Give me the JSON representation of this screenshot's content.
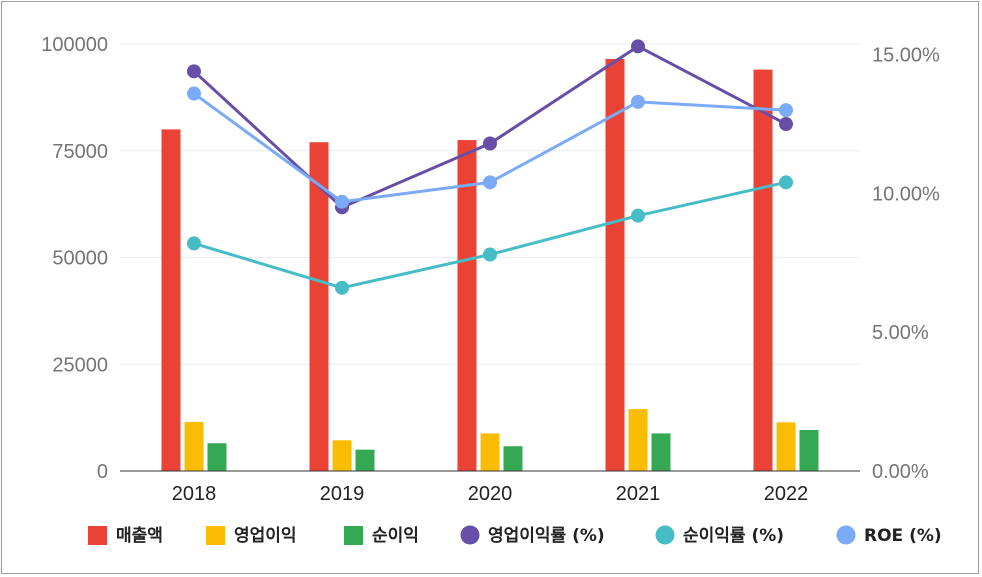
{
  "chart_data": {
    "type": "bar",
    "categories": [
      "2018",
      "2019",
      "2020",
      "2021",
      "2022"
    ],
    "bar_series": [
      {
        "name": "매출액",
        "color": "#ea4335",
        "values": [
          80000,
          77000,
          77500,
          96500,
          94000
        ]
      },
      {
        "name": "영업이익",
        "color": "#fbbc04",
        "values": [
          11500,
          7200,
          8800,
          14500,
          11400
        ]
      },
      {
        "name": "순이익",
        "color": "#34a853",
        "values": [
          6500,
          5000,
          5800,
          8800,
          9600
        ]
      }
    ],
    "line_series": [
      {
        "name": "영업이익률 (%)",
        "color": "#674ea7",
        "values": [
          14.4,
          9.5,
          11.8,
          15.3,
          12.5
        ]
      },
      {
        "name": "순이익률 (%)",
        "color": "#46bdc6",
        "values": [
          8.2,
          6.6,
          7.8,
          9.2,
          10.4
        ]
      },
      {
        "name": "ROE (%)",
        "color": "#7baaf7",
        "values": [
          13.6,
          9.7,
          10.4,
          13.3,
          13.0
        ]
      }
    ],
    "y_left": {
      "range": [
        0,
        100000
      ],
      "ticks": [
        "0",
        "25000",
        "50000",
        "75000",
        "100000"
      ],
      "tick_values": [
        0,
        25000,
        50000,
        75000,
        100000
      ]
    },
    "y_right": {
      "range": [
        0,
        15.3846
      ],
      "ticks": [
        "0.00%",
        "5.00%",
        "10.00%",
        "15.00%"
      ],
      "tick_values": [
        0,
        5,
        10,
        15
      ]
    },
    "grid": true,
    "legend_position": "bottom"
  }
}
